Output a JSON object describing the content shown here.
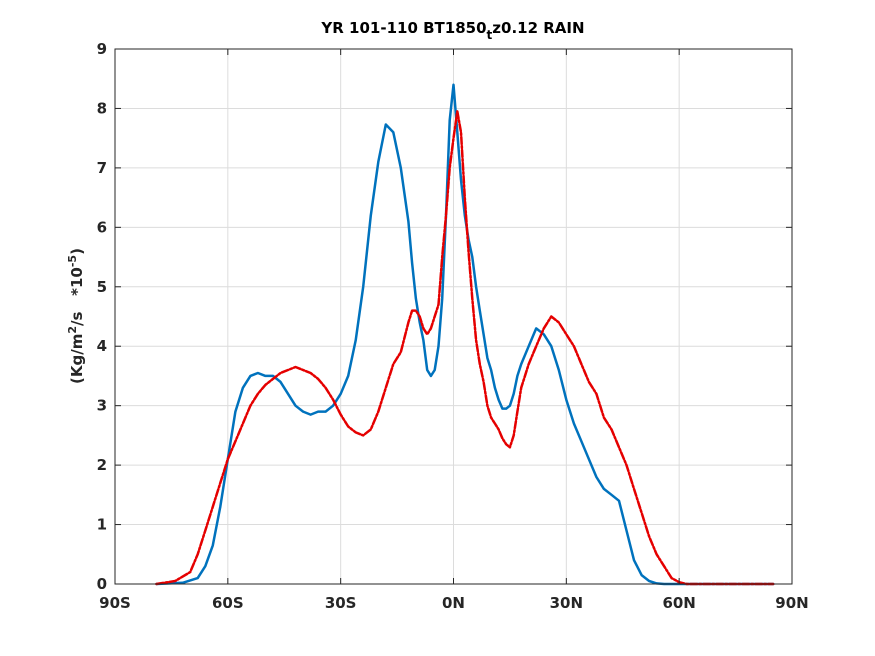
{
  "chart_data": {
    "type": "line",
    "title": {
      "main": "YR 101-110 BT1850",
      "sub": "t",
      "tail": "z0.12 RAIN"
    },
    "ylabel": {
      "prefix": "(Kg/m",
      "sup1": "2",
      "mid": "/s   *10",
      "sup2": "-5",
      "suffix": ")"
    },
    "xlim": [
      -90,
      90
    ],
    "ylim": [
      0,
      9
    ],
    "xticks": [
      -90,
      -60,
      -30,
      0,
      30,
      60,
      90
    ],
    "xtick_labels": [
      "90S",
      "60S",
      "30S",
      "0N",
      "30N",
      "60N",
      "90N"
    ],
    "yticks": [
      0,
      1,
      2,
      3,
      4,
      5,
      6,
      7,
      8,
      9
    ],
    "ytick_labels": [
      "0",
      "1",
      "2",
      "3",
      "4",
      "5",
      "6",
      "7",
      "8",
      "9"
    ],
    "grid": true,
    "series": [
      {
        "color": "#0072BD",
        "style": "solid",
        "x": [
          -79,
          -72,
          -68,
          -66,
          -64,
          -62,
          -60,
          -58,
          -56,
          -54,
          -52,
          -50,
          -48,
          -46,
          -44,
          -42,
          -40,
          -38,
          -36,
          -34,
          -32,
          -30,
          -28,
          -26,
          -24,
          -22,
          -20,
          -18,
          -16,
          -14,
          -12,
          -11,
          -10,
          -9,
          -8,
          -7,
          -6,
          -5,
          -4,
          -3,
          -2,
          -1,
          0,
          1,
          2,
          3,
          4,
          5,
          6,
          7,
          8,
          9,
          10,
          11,
          12,
          13,
          14,
          15,
          16,
          17,
          18,
          20,
          22,
          24,
          26,
          28,
          30,
          32,
          34,
          36,
          38,
          40,
          42,
          44,
          46,
          48,
          50,
          52,
          54,
          56,
          58,
          60,
          62,
          64,
          66,
          68,
          70,
          72,
          74,
          76,
          78,
          80,
          82,
          85
        ],
        "y": [
          0,
          0.02,
          0.1,
          0.3,
          0.65,
          1.3,
          2.1,
          2.9,
          3.3,
          3.5,
          3.55,
          3.5,
          3.5,
          3.4,
          3.2,
          3.0,
          2.9,
          2.85,
          2.9,
          2.9,
          3.0,
          3.2,
          3.5,
          4.1,
          5.0,
          6.2,
          7.1,
          7.73,
          7.6,
          7.0,
          6.1,
          5.4,
          4.8,
          4.4,
          4.1,
          3.6,
          3.5,
          3.6,
          4.0,
          4.8,
          6.2,
          7.8,
          8.4,
          7.6,
          6.8,
          6.2,
          5.8,
          5.5,
          5.0,
          4.6,
          4.2,
          3.8,
          3.6,
          3.3,
          3.1,
          2.95,
          2.95,
          3.0,
          3.2,
          3.5,
          3.7,
          4.0,
          4.3,
          4.2,
          4.0,
          3.6,
          3.1,
          2.7,
          2.4,
          2.1,
          1.8,
          1.6,
          1.5,
          1.4,
          0.9,
          0.4,
          0.15,
          0.05,
          0.01,
          0,
          0,
          0,
          0,
          0,
          0,
          0,
          0,
          0,
          0,
          0,
          0,
          0,
          0,
          0
        ]
      },
      {
        "color": "#E50000",
        "style": "dashed",
        "x": [
          -79,
          -74,
          -70,
          -68,
          -66,
          -64,
          -62,
          -60,
          -58,
          -56,
          -54,
          -52,
          -50,
          -48,
          -46,
          -44,
          -42,
          -40,
          -38,
          -36,
          -34,
          -32,
          -30,
          -28,
          -26,
          -24,
          -22,
          -20,
          -18,
          -16,
          -14,
          -12,
          -11,
          -10,
          -9,
          -8,
          -7,
          -6,
          -5,
          -4,
          -3,
          -2,
          -1,
          0,
          1,
          2,
          3,
          4,
          5,
          6,
          7,
          8,
          9,
          10,
          11,
          12,
          13,
          14,
          15,
          16,
          17,
          18,
          20,
          22,
          24,
          26,
          28,
          30,
          32,
          34,
          36,
          38,
          40,
          42,
          44,
          46,
          48,
          50,
          52,
          54,
          56,
          58,
          60,
          62,
          64,
          66,
          68,
          70,
          72,
          74,
          76,
          78,
          80,
          82,
          85
        ],
        "y": [
          0,
          0.05,
          0.2,
          0.5,
          0.9,
          1.3,
          1.7,
          2.1,
          2.4,
          2.7,
          3.0,
          3.2,
          3.35,
          3.45,
          3.55,
          3.6,
          3.65,
          3.6,
          3.55,
          3.45,
          3.3,
          3.1,
          2.85,
          2.65,
          2.55,
          2.5,
          2.6,
          2.9,
          3.3,
          3.7,
          3.9,
          4.4,
          4.6,
          4.6,
          4.5,
          4.3,
          4.2,
          4.3,
          4.5,
          4.7,
          5.5,
          6.2,
          7.0,
          7.5,
          7.95,
          7.6,
          6.5,
          5.6,
          4.8,
          4.1,
          3.7,
          3.4,
          3.0,
          2.8,
          2.7,
          2.6,
          2.45,
          2.35,
          2.3,
          2.5,
          2.9,
          3.3,
          3.7,
          4.0,
          4.3,
          4.5,
          4.4,
          4.2,
          4.0,
          3.7,
          3.4,
          3.2,
          2.8,
          2.6,
          2.3,
          2.0,
          1.6,
          1.2,
          0.8,
          0.5,
          0.3,
          0.1,
          0.03,
          0,
          0,
          0,
          0,
          0,
          0,
          0,
          0,
          0,
          0,
          0,
          0
        ]
      }
    ]
  }
}
